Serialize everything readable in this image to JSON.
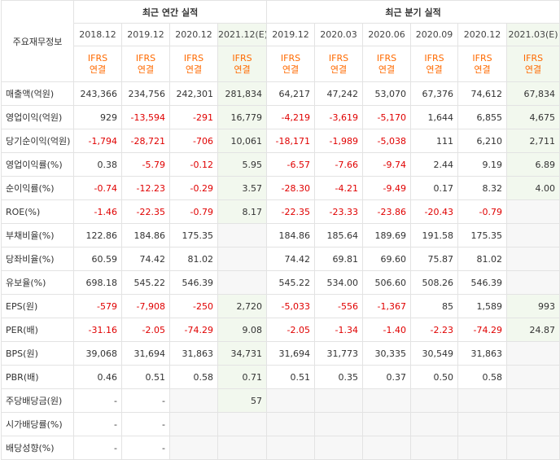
{
  "header": {
    "corner_label": "주요재무정보",
    "annual_group": "최근 연간 실적",
    "quarter_group": "최근 분기 실적",
    "periods": [
      "2018.12",
      "2019.12",
      "2020.12",
      "2021.12(E)",
      "2019.12",
      "2020.03",
      "2020.06",
      "2020.09",
      "2020.12",
      "2021.03(E)"
    ],
    "ifrs_top": "IFRS",
    "ifrs_bottom": "연결"
  },
  "rows": [
    {
      "label": "매출액(억원)",
      "values": [
        "243,366",
        "234,756",
        "242,301",
        "281,834",
        "64,217",
        "47,242",
        "53,070",
        "67,376",
        "74,612",
        "67,834"
      ]
    },
    {
      "label": "영업이익(억원)",
      "values": [
        "929",
        "-13,594",
        "-291",
        "16,779",
        "-4,219",
        "-3,619",
        "-5,170",
        "1,644",
        "6,855",
        "4,675"
      ]
    },
    {
      "label": "당기순이익(억원)",
      "values": [
        "-1,794",
        "-28,721",
        "-706",
        "10,061",
        "-18,171",
        "-1,989",
        "-5,038",
        "111",
        "6,210",
        "2,711"
      ]
    },
    {
      "label": "영업이익률(%)",
      "values": [
        "0.38",
        "-5.79",
        "-0.12",
        "5.95",
        "-6.57",
        "-7.66",
        "-9.74",
        "2.44",
        "9.19",
        "6.89"
      ]
    },
    {
      "label": "순이익률(%)",
      "values": [
        "-0.74",
        "-12.23",
        "-0.29",
        "3.57",
        "-28.30",
        "-4.21",
        "-9.49",
        "0.17",
        "8.32",
        "4.00"
      ]
    },
    {
      "label": "ROE(%)",
      "values": [
        "-1.46",
        "-22.35",
        "-0.79",
        "8.17",
        "-22.35",
        "-23.33",
        "-23.86",
        "-20.43",
        "-0.79",
        ""
      ]
    },
    {
      "label": "부채비율(%)",
      "values": [
        "122.86",
        "184.86",
        "175.35",
        "",
        "184.86",
        "185.64",
        "189.69",
        "191.58",
        "175.35",
        ""
      ]
    },
    {
      "label": "당좌비율(%)",
      "values": [
        "60.59",
        "74.42",
        "81.02",
        "",
        "74.42",
        "69.81",
        "69.60",
        "75.87",
        "81.02",
        ""
      ]
    },
    {
      "label": "유보율(%)",
      "values": [
        "698.18",
        "545.22",
        "546.39",
        "",
        "545.22",
        "534.00",
        "506.60",
        "508.26",
        "546.39",
        ""
      ]
    },
    {
      "label": "EPS(원)",
      "values": [
        "-579",
        "-7,908",
        "-250",
        "2,720",
        "-5,033",
        "-556",
        "-1,367",
        "85",
        "1,589",
        "993"
      ]
    },
    {
      "label": "PER(배)",
      "values": [
        "-31.16",
        "-2.05",
        "-74.29",
        "9.08",
        "-2.05",
        "-1.34",
        "-1.40",
        "-2.23",
        "-74.29",
        "24.87"
      ]
    },
    {
      "label": "BPS(원)",
      "values": [
        "39,068",
        "31,694",
        "31,863",
        "34,731",
        "31,694",
        "31,773",
        "30,335",
        "30,549",
        "31,863",
        ""
      ]
    },
    {
      "label": "PBR(배)",
      "values": [
        "0.46",
        "0.51",
        "0.58",
        "0.71",
        "0.51",
        "0.35",
        "0.37",
        "0.50",
        "0.58",
        ""
      ]
    },
    {
      "label": "주당배당금(원)",
      "values": [
        "-",
        "-",
        "",
        "57",
        "",
        "",
        "",
        "",
        "",
        ""
      ]
    },
    {
      "label": "시가배당률(%)",
      "values": [
        "-",
        "-",
        "",
        "",
        "",
        "",
        "",
        "",
        "",
        ""
      ]
    },
    {
      "label": "배당성향(%)",
      "values": [
        "-",
        "-",
        "",
        "",
        "",
        "",
        "",
        "",
        "",
        ""
      ]
    }
  ],
  "colors": {
    "negative": "#e00000",
    "ifrs": "#ff6a00",
    "estimate_bg": "#f2f8ee",
    "empty_bg": "#f7f7f7"
  }
}
